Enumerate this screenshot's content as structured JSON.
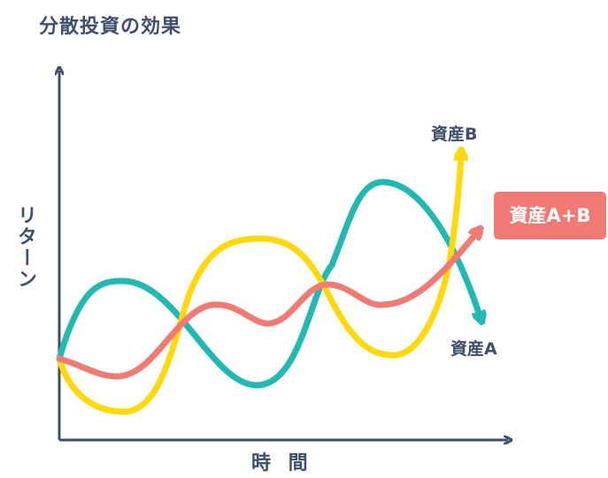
{
  "title": "分散投資の効果",
  "axes": {
    "y_label": "リターン",
    "x_label": "時 間"
  },
  "series": {
    "a": {
      "name": "資産A",
      "color": "#22b9b3"
    },
    "b": {
      "name": "資産B",
      "color": "#ffd80d"
    },
    "ab": {
      "name": "資産A+B",
      "color": "#f07a74"
    }
  },
  "axis_color": "#3e4f6b"
}
